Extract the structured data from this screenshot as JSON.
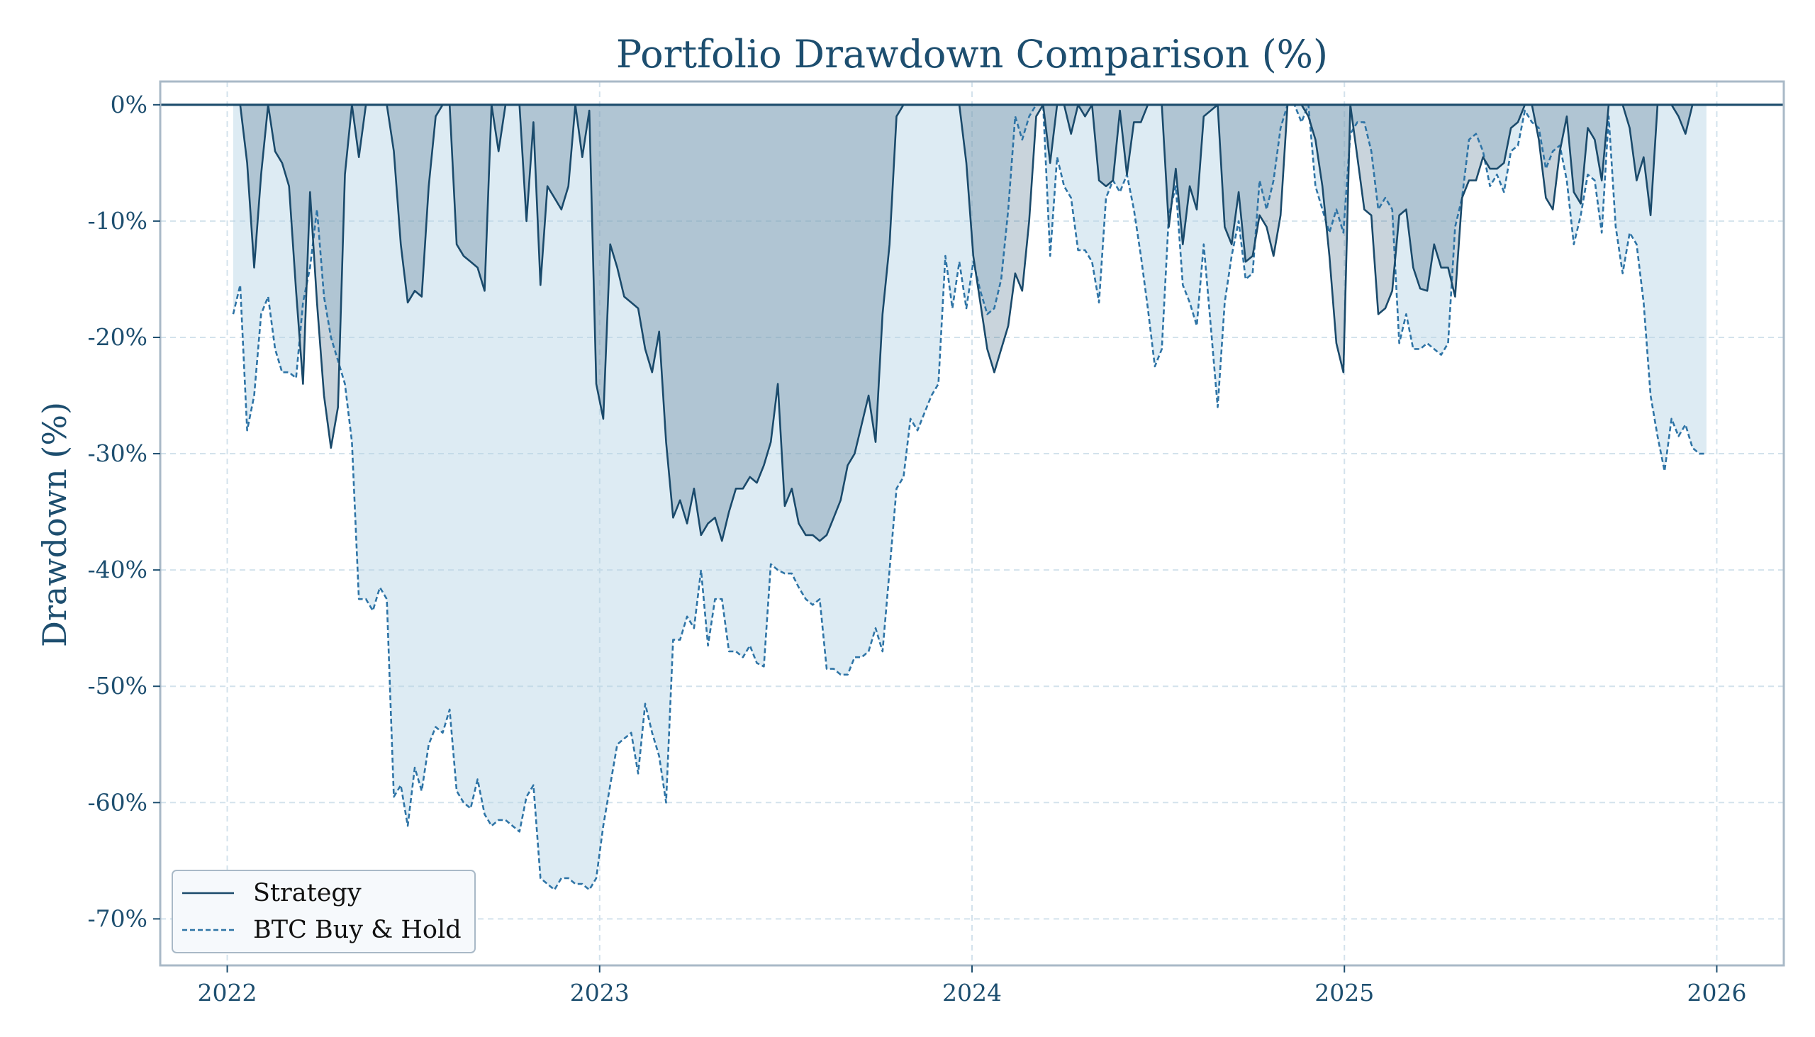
{
  "colors": {
    "text": "#1d4e6f",
    "strategy_line": "#1a4a6b",
    "strategy_fill": "rgba(60,100,130,0.28)",
    "btc_line": "#2e74a6",
    "btc_fill": "rgba(180,210,228,0.45)",
    "frame": "#a9b9c7",
    "grid": "#d3e2ec",
    "legend_bg": "#f6f9fc"
  },
  "chart_data": {
    "type": "area",
    "title": "Portfolio Drawdown Comparison (%)",
    "xlabel": "",
    "ylabel": "Drawdown (%)",
    "xlim": [
      2021.82,
      2026.18
    ],
    "ylim": [
      -74,
      2
    ],
    "grid": true,
    "legend_placement": "lower-left",
    "x_ticks": [
      2022,
      2023,
      2024,
      2025,
      2026
    ],
    "x_tick_labels": [
      "2022",
      "2023",
      "2024",
      "2025",
      "2026"
    ],
    "y_ticks": [
      0,
      -10,
      -20,
      -30,
      -40,
      -50,
      -60,
      -70
    ],
    "y_tick_labels": [
      "0%",
      "-10%",
      "-20%",
      "-30%",
      "-40%",
      "-50%",
      "-60%",
      "-70%"
    ],
    "x_start_year": 2022.016,
    "x_step_years": 0.01875,
    "series": [
      {
        "name": "Strategy",
        "style": "solid",
        "values": [
          0,
          0,
          -5,
          -14,
          -6,
          0,
          -4,
          -5,
          -7,
          -16,
          -24,
          -7.5,
          -17,
          -25,
          -29.5,
          -26,
          -6,
          0,
          -4.5,
          0,
          0,
          0,
          0,
          -4,
          -12,
          -17,
          -16,
          -16.5,
          -7,
          -1,
          0,
          0,
          -12,
          -13,
          -13.5,
          -14,
          -16,
          0,
          -4,
          0,
          0,
          0,
          -10,
          -1.5,
          -15.5,
          -7,
          -8,
          -9,
          -7,
          0,
          -4.5,
          -0.5,
          -24,
          -27,
          -12,
          -14,
          -16.5,
          -17,
          -17.5,
          -21,
          -23,
          -19.5,
          -29,
          -35.5,
          -34,
          -36,
          -33,
          -37,
          -36,
          -35.5,
          -37.5,
          -35,
          -33,
          -33,
          -32,
          -32.5,
          -31,
          -29,
          -24,
          -34.5,
          -33,
          -36,
          -37,
          -37,
          -37.5,
          -37,
          -35.5,
          -34,
          -31,
          -30,
          -27.5,
          -25,
          -29,
          -18,
          -12,
          -1,
          0,
          0,
          0,
          0,
          0,
          0,
          0,
          0,
          0,
          -5,
          -13,
          -17,
          -21,
          -23,
          -21,
          -19,
          -14.5,
          -16,
          -10,
          -1,
          0,
          -5,
          0,
          0,
          -2.5,
          0,
          -1,
          0,
          -6.5,
          -7,
          -6.5,
          -0.5,
          -6,
          -1.5,
          -1.5,
          0,
          0,
          0,
          -10.5,
          -5.5,
          -12,
          -7,
          -9,
          -1,
          -0.5,
          0,
          -10.5,
          -12,
          -7.5,
          -13.5,
          -13,
          -9.5,
          -10.5,
          -13,
          -9.5,
          0,
          0,
          0,
          -1,
          -3,
          -7,
          -13,
          -20.5,
          -23,
          0,
          -4.5,
          -9,
          -9.5,
          -18,
          -17.5,
          -16,
          -9.5,
          -9,
          -14,
          -15.8,
          -16,
          -12,
          -14,
          -14,
          -16.5,
          -8,
          -6.5,
          -6.5,
          -4.5,
          -5.5,
          -5.5,
          -5,
          -2,
          -1.5,
          0,
          0,
          -3,
          -8,
          -9,
          -4,
          -1,
          -7.5,
          -8.5,
          -2,
          -3,
          -6.5,
          0,
          0,
          0,
          -2,
          -6.5,
          -4.5,
          -9.5,
          0,
          0,
          0,
          -1,
          -2.5,
          0,
          0,
          0
        ]
      },
      {
        "name": "BTC Buy & Hold",
        "style": "dashed",
        "values": [
          -18,
          -15.5,
          -28,
          -25,
          -18,
          -16.5,
          -21,
          -23,
          -23,
          -23.5,
          -17,
          -14,
          -9,
          -16.5,
          -20,
          -22,
          -24,
          -29,
          -42.5,
          -42.5,
          -43.5,
          -41.5,
          -42.5,
          -59.5,
          -58.5,
          -62,
          -57,
          -59,
          -55,
          -53.5,
          -54,
          -52,
          -59,
          -60,
          -60.5,
          -58,
          -61,
          -62,
          -61.5,
          -61.5,
          -62,
          -62.5,
          -59.5,
          -58.5,
          -66.5,
          -67,
          -67.5,
          -66.5,
          -66.5,
          -67,
          -67,
          -67.5,
          -66.5,
          -62,
          -58.5,
          -55,
          -54.5,
          -54,
          -57.5,
          -51.5,
          -54,
          -56,
          -60,
          -46,
          -46,
          -44,
          -45,
          -40,
          -46.5,
          -42.5,
          -42.5,
          -47,
          -47,
          -47.5,
          -46.5,
          -48,
          -48.3,
          -39.5,
          -40,
          -40.3,
          -40.3,
          -41.5,
          -42.5,
          -43,
          -42.5,
          -48.5,
          -48.5,
          -49,
          -49,
          -47.5,
          -47.5,
          -47,
          -45,
          -47,
          -40,
          -33,
          -32,
          -27,
          -28,
          -26.5,
          -25,
          -24,
          -13,
          -17.5,
          -13.5,
          -17.5,
          -13.5,
          -16,
          -18,
          -17.5,
          -15,
          -9,
          -1,
          -3,
          -1,
          0,
          0,
          -13,
          -4.5,
          -7,
          -8,
          -12.5,
          -12.5,
          -13.5,
          -17,
          -8,
          -6.5,
          -7.5,
          -6,
          -9,
          -13,
          -17.5,
          -22.5,
          -21,
          -9.5,
          -7,
          -15.5,
          -17,
          -19,
          -12,
          -19,
          -26,
          -17,
          -13,
          -10,
          -15,
          -14.5,
          -6.5,
          -9,
          -6.5,
          -2,
          0,
          0,
          -1.5,
          0,
          -7,
          -9,
          -11,
          -9,
          -11,
          -2.5,
          -1.5,
          -1.5,
          -4,
          -9,
          -8,
          -9,
          -20.5,
          -18,
          -21,
          -21,
          -20.5,
          -21,
          -21.5,
          -20.5,
          -10.5,
          -8,
          -3,
          -2.5,
          -4,
          -7,
          -6,
          -7.5,
          -4,
          -3.5,
          -0.5,
          -1.5,
          -2,
          -5.5,
          -4,
          -3.5,
          -6.5,
          -12,
          -9.5,
          -6,
          -6.5,
          -11,
          -1,
          -10.5,
          -14.5,
          -11,
          -12,
          -17,
          -25,
          -28.5,
          -31.5,
          -27,
          -28.5,
          -27.5,
          -29.5,
          -30,
          -30
        ]
      }
    ]
  }
}
